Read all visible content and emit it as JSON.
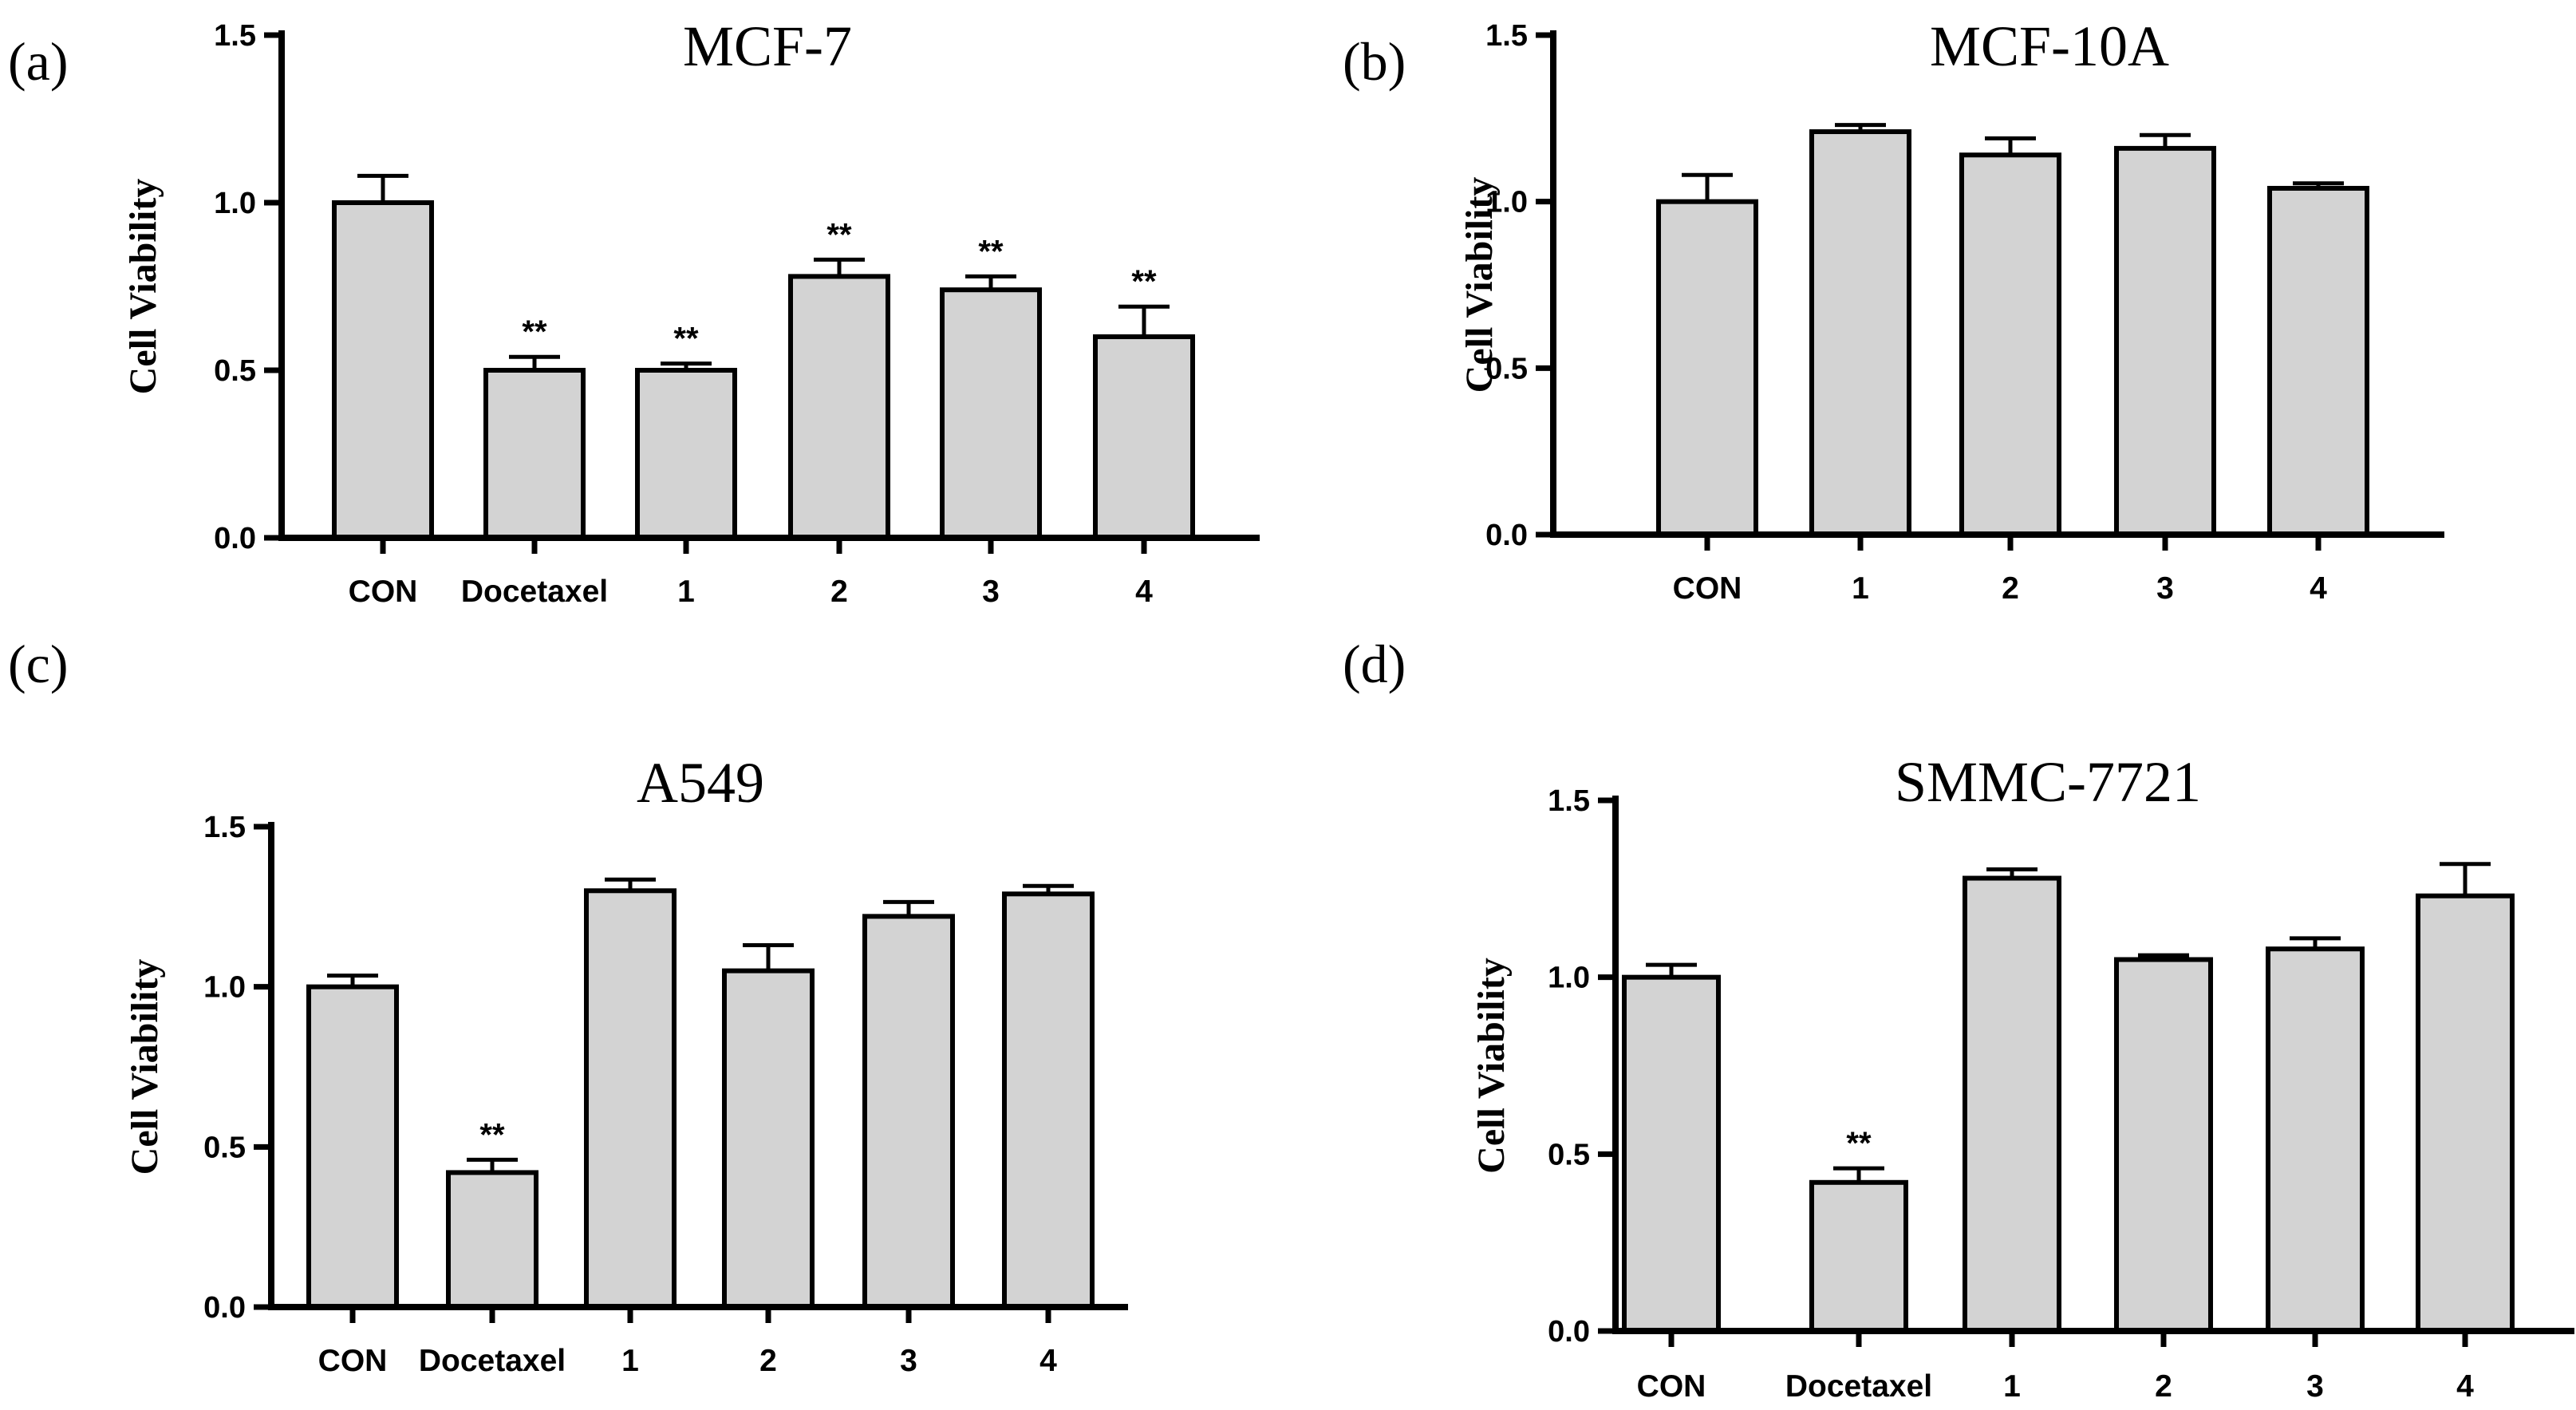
{
  "chart_data": [
    {
      "type": "bar",
      "panel": "(a)",
      "title": "MCF-7",
      "xlabel": "",
      "ylabel": "Cell Viability",
      "ylim": [
        0,
        1.5
      ],
      "yticks": [
        "0.0",
        "0.5",
        "1.0",
        "1.5"
      ],
      "categories": [
        "CON",
        "Docetaxel",
        "1",
        "2",
        "3",
        "4"
      ],
      "values": [
        1.0,
        0.5,
        0.5,
        0.78,
        0.74,
        0.6
      ],
      "errors": [
        0.08,
        0.04,
        0.02,
        0.05,
        0.04,
        0.09
      ],
      "annotations": [
        "",
        "**",
        "**",
        "**",
        "**",
        "**"
      ],
      "color": "#d3d3d3"
    },
    {
      "type": "bar",
      "panel": "(b)",
      "title": "MCF-10A",
      "xlabel": "",
      "ylabel": "Cell Viability",
      "ylim": [
        0,
        1.5
      ],
      "yticks": [
        "0.0",
        "0.5",
        "1.0",
        "1.5"
      ],
      "categories": [
        "CON",
        "1",
        "2",
        "3",
        "4"
      ],
      "values": [
        1.0,
        1.21,
        1.14,
        1.16,
        1.04
      ],
      "errors": [
        0.08,
        0.02,
        0.05,
        0.04,
        0.015
      ],
      "annotations": [
        "",
        "",
        "",
        "",
        ""
      ],
      "color": "#d3d3d3"
    },
    {
      "type": "bar",
      "panel": "(c)",
      "title": "A549",
      "xlabel": "",
      "ylabel": "Cell Viability",
      "ylim": [
        0,
        1.5
      ],
      "yticks": [
        "0.0",
        "0.5",
        "1.0",
        "1.5"
      ],
      "categories": [
        "CON",
        "Docetaxel",
        "1",
        "2",
        "3",
        "4"
      ],
      "values": [
        1.0,
        0.42,
        1.3,
        1.05,
        1.22,
        1.29
      ],
      "errors": [
        0.035,
        0.04,
        0.035,
        0.08,
        0.045,
        0.025
      ],
      "annotations": [
        "",
        "**",
        "",
        "",
        "",
        ""
      ],
      "color": "#d3d3d3"
    },
    {
      "type": "bar",
      "panel": "(d)",
      "title": "SMMC-7721",
      "xlabel": "",
      "ylabel": "Cell Viability",
      "ylim": [
        0,
        1.5
      ],
      "yticks": [
        "0.0",
        "0.5",
        "1.0",
        "1.5"
      ],
      "categories": [
        "CON",
        "Docetaxel",
        "1",
        "2",
        "3",
        "4"
      ],
      "values": [
        1.0,
        0.42,
        1.28,
        1.05,
        1.08,
        1.23
      ],
      "errors": [
        0.035,
        0.04,
        0.025,
        0.012,
        0.03,
        0.09
      ],
      "annotations": [
        "",
        "**",
        "",
        "",
        "",
        ""
      ],
      "color": "#d3d3d3"
    }
  ]
}
